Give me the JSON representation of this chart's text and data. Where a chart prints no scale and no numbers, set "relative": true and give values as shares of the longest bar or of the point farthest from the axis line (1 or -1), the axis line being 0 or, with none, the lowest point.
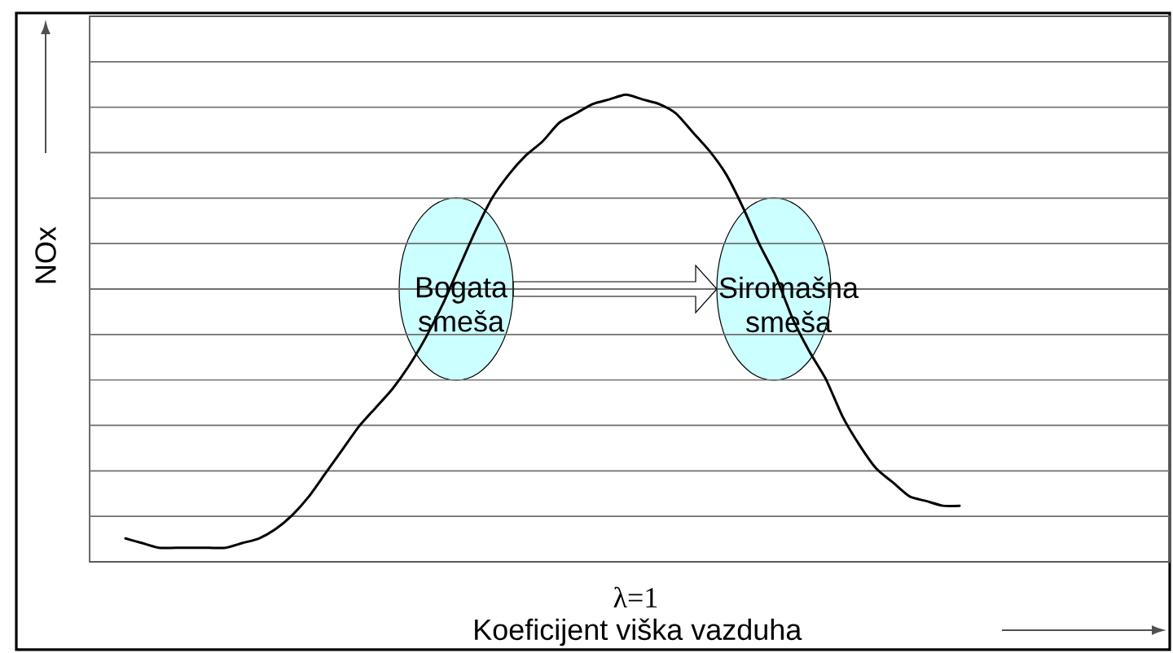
{
  "chart_data": {
    "type": "line",
    "relative": true,
    "xlabel": "Koeficijent viška vazduha",
    "ylabel": "NOx",
    "grid": "y",
    "categories": [
      null,
      null,
      null,
      null,
      null,
      null,
      null,
      null,
      null,
      null,
      null,
      null,
      null,
      null,
      null,
      null,
      null,
      null,
      null,
      null,
      null,
      null,
      null,
      null,
      null,
      null,
      null,
      null,
      null,
      null,
      null,
      null,
      null,
      null,
      null,
      null,
      null,
      null,
      null,
      null,
      null,
      null,
      null,
      null,
      null,
      null,
      null,
      null,
      null,
      null,
      null
    ],
    "series": [
      {
        "color": "#000000",
        "values": [
          0.05,
          0.04,
          0.03,
          0.03,
          0.03,
          0.03,
          0.03,
          0.04,
          0.05,
          0.07,
          0.1,
          0.14,
          0.19,
          0.24,
          0.29,
          0.33,
          0.37,
          0.42,
          0.48,
          0.55,
          0.63,
          0.71,
          0.78,
          0.83,
          0.87,
          0.9,
          0.94,
          0.96,
          0.98,
          0.99,
          1,
          0.99,
          0.98,
          0.96,
          0.92,
          0.88,
          0.83,
          0.76,
          0.68,
          0.61,
          0.52,
          0.45,
          0.39,
          0.31,
          0.25,
          0.2,
          0.17,
          0.14,
          0.13,
          0.12,
          0.12
        ]
      }
    ],
    "annotations": [
      "Bogata smeša",
      "Siromašna smeša",
      "λ=1"
    ]
  }
}
